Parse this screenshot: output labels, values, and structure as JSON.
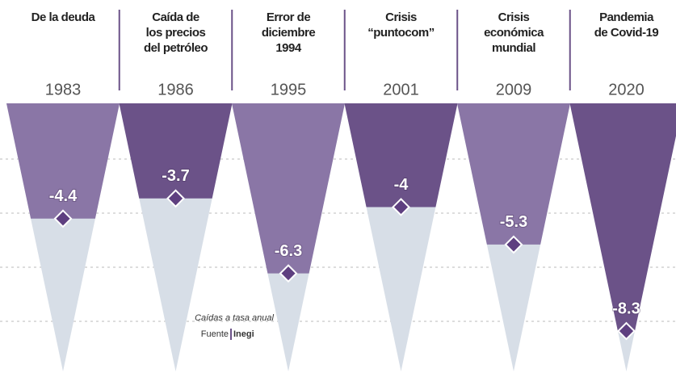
{
  "chart_data": {
    "type": "triangle",
    "categories": [
      [
        "De la deuda"
      ],
      [
        "Caída de",
        "los precios",
        "del petróleo"
      ],
      [
        "Error de",
        "diciembre",
        "1994"
      ],
      [
        "Crisis",
        "“puntocom”"
      ],
      [
        "Crisis",
        "económica",
        "mundial"
      ],
      [
        "Pandemia",
        "de Covid-19"
      ]
    ],
    "years": [
      "1983",
      "1986",
      "1995",
      "2001",
      "2009",
      "2020"
    ],
    "values": [
      -4.4,
      -3.7,
      -6.3,
      -4.0,
      -5.3,
      -8.3
    ],
    "ylim": [
      -0.4,
      -9.7
    ],
    "colors": [
      "#8a76a6",
      "#6b5288",
      "#8a76a6",
      "#6b5288",
      "#8a76a6",
      "#6b5288"
    ],
    "rest_color": "#d7dee7",
    "marker_color": "#5e3f80",
    "annotation": "Caídas a tasa anual",
    "source_label": "Fuente",
    "source": "Inegi"
  }
}
